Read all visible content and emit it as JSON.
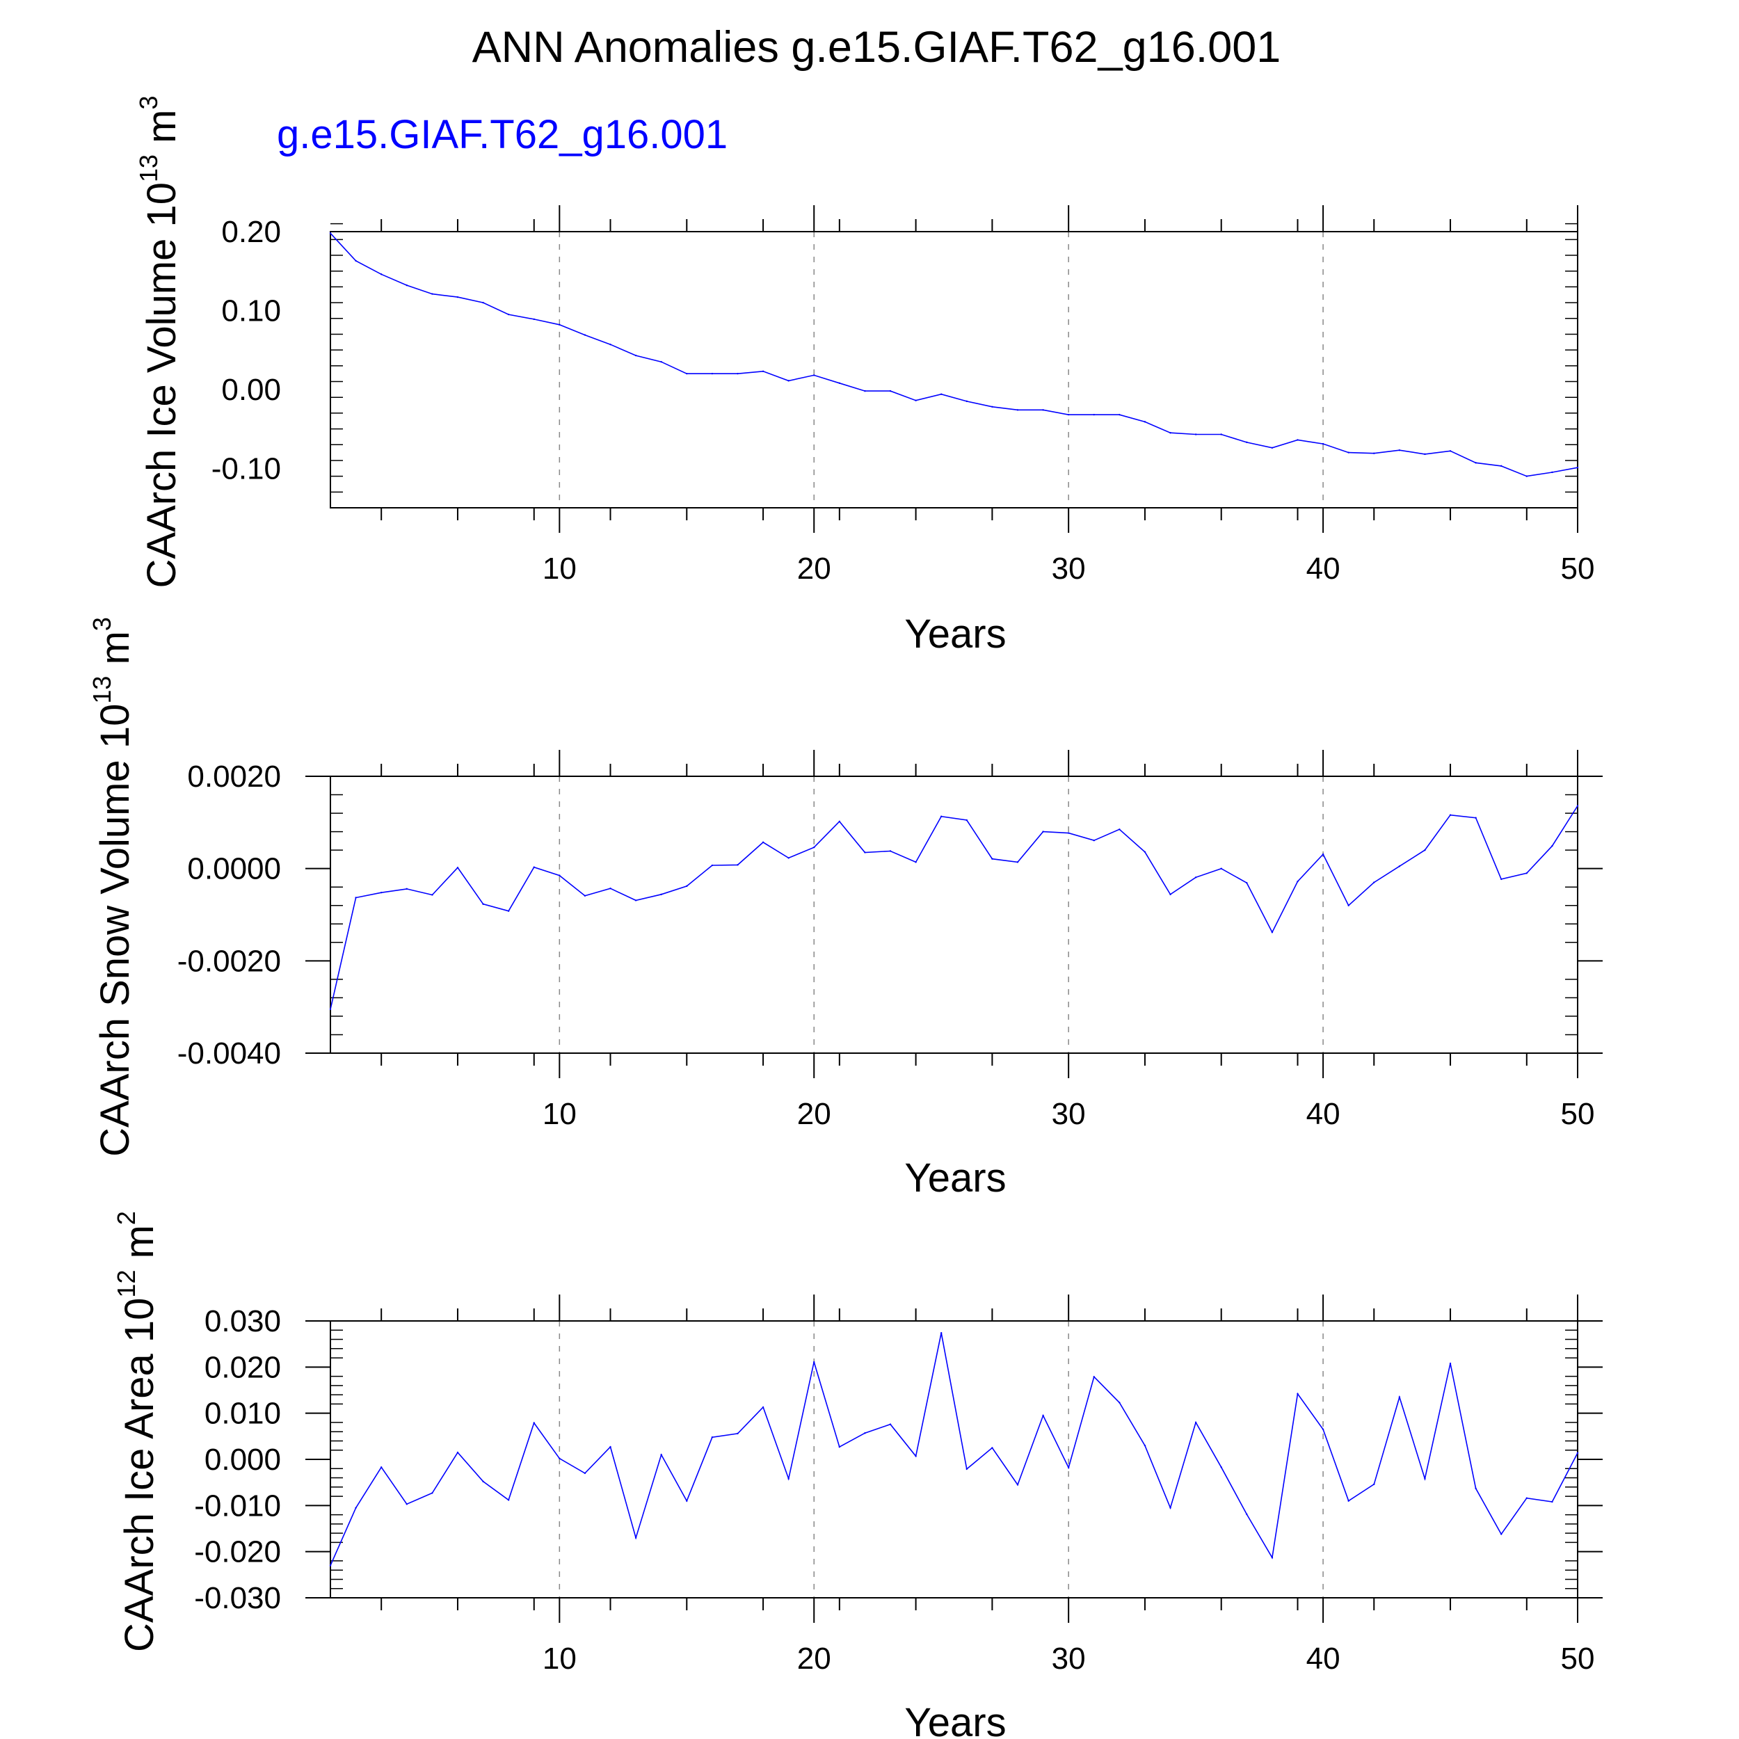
{
  "page": {
    "title": "ANN Anomalies g.e15.GIAF.T62_g16.001",
    "series_name": "g.e15.GIAF.T62_g16.001",
    "line_color": "#0000ff",
    "dash_color": "#888888"
  },
  "chart_data": [
    {
      "type": "line",
      "title": "ANN Anomalies g.e15.GIAF.T62_g16.001",
      "ylabel": "CAArch Ice Volume 10",
      "yunit_exp": "13",
      "yunit_tail": " m",
      "yunit_sup": "3",
      "xlabel": "Years",
      "xlim": [
        1,
        50
      ],
      "ylim": [
        -0.15,
        0.2
      ],
      "xticks": [
        10,
        20,
        30,
        40,
        50
      ],
      "xtick_labels": [
        "10",
        "20",
        "30",
        "40",
        "50"
      ],
      "yticks": [
        -0.1,
        0.0,
        0.1,
        0.2
      ],
      "ytick_labels": [
        "-0.10",
        "0.00",
        "0.10",
        "0.20"
      ],
      "y_minor_step": 0.02,
      "series": [
        {
          "name": "g.e15.GIAF.T62_g16.001",
          "x": [
            1,
            2,
            3,
            4,
            5,
            6,
            7,
            8,
            9,
            10,
            11,
            12,
            13,
            14,
            15,
            16,
            17,
            18,
            19,
            20,
            21,
            22,
            23,
            24,
            25,
            26,
            27,
            28,
            29,
            30,
            31,
            32,
            33,
            34,
            35,
            36,
            37,
            38,
            39,
            40,
            41,
            42,
            43,
            44,
            45,
            46,
            47,
            48,
            49,
            50
          ],
          "values": [
            0.198,
            0.163,
            0.146,
            0.132,
            0.121,
            0.117,
            0.11,
            0.095,
            0.089,
            0.082,
            0.069,
            0.057,
            0.043,
            0.035,
            0.02,
            0.02,
            0.02,
            0.023,
            0.011,
            0.018,
            0.008,
            -0.002,
            -0.002,
            -0.014,
            -0.006,
            -0.015,
            -0.022,
            -0.026,
            -0.026,
            -0.032,
            -0.032,
            -0.032,
            -0.041,
            -0.055,
            -0.057,
            -0.057,
            -0.067,
            -0.074,
            -0.064,
            -0.069,
            -0.08,
            -0.081,
            -0.077,
            -0.082,
            -0.078,
            -0.093,
            -0.097,
            -0.11,
            -0.105,
            -0.099
          ]
        }
      ]
    },
    {
      "type": "line",
      "ylabel": "CAArch Snow Volume 10",
      "yunit_exp": "13",
      "yunit_tail": " m",
      "yunit_sup": "3",
      "xlabel": "Years",
      "xlim": [
        1,
        50
      ],
      "ylim": [
        -0.004,
        0.002
      ],
      "xticks": [
        10,
        20,
        30,
        40,
        50
      ],
      "xtick_labels": [
        "10",
        "20",
        "30",
        "40",
        "50"
      ],
      "yticks": [
        -0.004,
        -0.002,
        0.0,
        0.002
      ],
      "ytick_labels": [
        "-0.0040",
        "-0.0020",
        "0.0000",
        "0.0020"
      ],
      "y_minor_step": 0.0004,
      "series": [
        {
          "name": "g.e15.GIAF.T62_g16.001",
          "x": [
            1,
            2,
            3,
            4,
            5,
            6,
            7,
            8,
            9,
            10,
            11,
            12,
            13,
            14,
            15,
            16,
            17,
            18,
            19,
            20,
            21,
            22,
            23,
            24,
            25,
            26,
            27,
            28,
            29,
            30,
            31,
            32,
            33,
            34,
            35,
            36,
            37,
            38,
            39,
            40,
            41,
            42,
            43,
            44,
            45,
            46,
            47,
            48,
            49,
            50
          ],
          "values": [
            -0.00305,
            -0.00063,
            -0.00052,
            -0.00044,
            -0.00057,
            2e-05,
            -0.00077,
            -0.00092,
            3e-05,
            -0.00015,
            -0.00059,
            -0.00043,
            -0.00069,
            -0.00056,
            -0.00038,
            7e-05,
            8e-05,
            0.00057,
            0.00023,
            0.00046,
            0.00102,
            0.00035,
            0.00038,
            0.00014,
            0.00113,
            0.00105,
            0.00021,
            0.00014,
            0.0008,
            0.00077,
            0.00061,
            0.00085,
            0.00036,
            -0.00056,
            -0.00019,
            0.0,
            -0.00031,
            -0.00138,
            -0.00028,
            0.00031,
            -0.0008,
            -0.0003,
            5e-05,
            0.0004,
            0.00116,
            0.0011,
            -0.00023,
            -0.0001,
            0.00049,
            0.00136
          ]
        }
      ]
    },
    {
      "type": "line",
      "ylabel": "CAArch Ice Area 10",
      "yunit_exp": "12",
      "yunit_tail": " m",
      "yunit_sup": "2",
      "xlabel": "Years",
      "xlim": [
        1,
        50
      ],
      "ylim": [
        -0.03,
        0.03
      ],
      "xticks": [
        10,
        20,
        30,
        40,
        50
      ],
      "xtick_labels": [
        "10",
        "20",
        "30",
        "40",
        "50"
      ],
      "yticks": [
        -0.03,
        -0.02,
        -0.01,
        0.0,
        0.01,
        0.02,
        0.03
      ],
      "ytick_labels": [
        "-0.030",
        "-0.020",
        "-0.010",
        "0.000",
        "0.010",
        "0.020",
        "0.030"
      ],
      "y_minor_step": 0.002,
      "series": [
        {
          "name": "g.e15.GIAF.T62_g16.001",
          "x": [
            1,
            2,
            3,
            4,
            5,
            6,
            7,
            8,
            9,
            10,
            11,
            12,
            13,
            14,
            15,
            16,
            17,
            18,
            19,
            20,
            21,
            22,
            23,
            24,
            25,
            26,
            27,
            28,
            29,
            30,
            31,
            32,
            33,
            34,
            35,
            36,
            37,
            38,
            39,
            40,
            41,
            42,
            43,
            44,
            45,
            46,
            47,
            48,
            49,
            50
          ],
          "values": [
            -0.023,
            -0.0105,
            -0.0017,
            -0.0097,
            -0.0073,
            0.0015,
            -0.0048,
            -0.0088,
            0.0079,
            0.0002,
            -0.003,
            0.0027,
            -0.017,
            0.001,
            -0.009,
            0.0048,
            0.0056,
            0.0113,
            -0.0042,
            0.0211,
            0.0027,
            0.0057,
            0.0076,
            0.0007,
            0.0274,
            -0.0021,
            0.0025,
            -0.0055,
            0.0095,
            -0.0018,
            0.0179,
            0.0123,
            0.003,
            -0.0105,
            0.008,
            -0.0017,
            -0.0119,
            -0.0213,
            0.0142,
            0.0065,
            -0.009,
            -0.0054,
            0.0135,
            -0.0042,
            0.0208,
            -0.0063,
            -0.0162,
            -0.0084,
            -0.0092,
            0.0014
          ]
        }
      ]
    }
  ]
}
